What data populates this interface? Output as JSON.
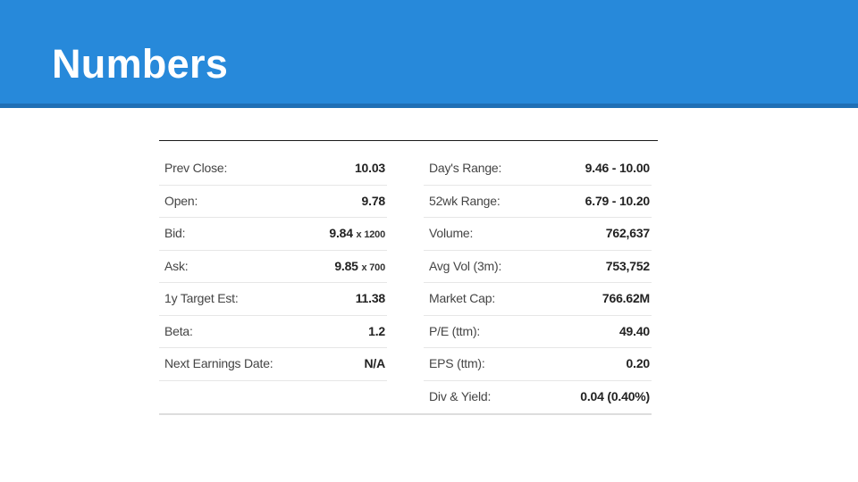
{
  "slide": {
    "title": "Numbers"
  },
  "colors": {
    "header": "#2789DA",
    "header_shadow": "#1f6fb5"
  },
  "left_column": [
    {
      "label": "Prev Close:",
      "value": "10.03",
      "size": ""
    },
    {
      "label": "Open:",
      "value": "9.78",
      "size": ""
    },
    {
      "label": "Bid:",
      "value": "9.84",
      "size": "x 1200"
    },
    {
      "label": "Ask:",
      "value": "9.85",
      "size": "x 700"
    },
    {
      "label": "1y Target Est:",
      "value": "11.38",
      "size": ""
    },
    {
      "label": "Beta:",
      "value": "1.2",
      "size": ""
    },
    {
      "label": "Next Earnings Date:",
      "value": "N/A",
      "size": ""
    }
  ],
  "right_column": [
    {
      "label": "Day's Range:",
      "value": "9.46 - 10.00"
    },
    {
      "label": "52wk Range:",
      "value": "6.79 - 10.20"
    },
    {
      "label": "Volume:",
      "value": "762,637"
    },
    {
      "label": "Avg Vol (3m):",
      "value": "753,752"
    },
    {
      "label": "Market Cap:",
      "value": "766.62M"
    },
    {
      "label": "P/E (ttm):",
      "value": "49.40"
    },
    {
      "label": "EPS (ttm):",
      "value": "0.20"
    },
    {
      "label": "Div & Yield:",
      "value": "0.04 (0.40%)"
    }
  ]
}
